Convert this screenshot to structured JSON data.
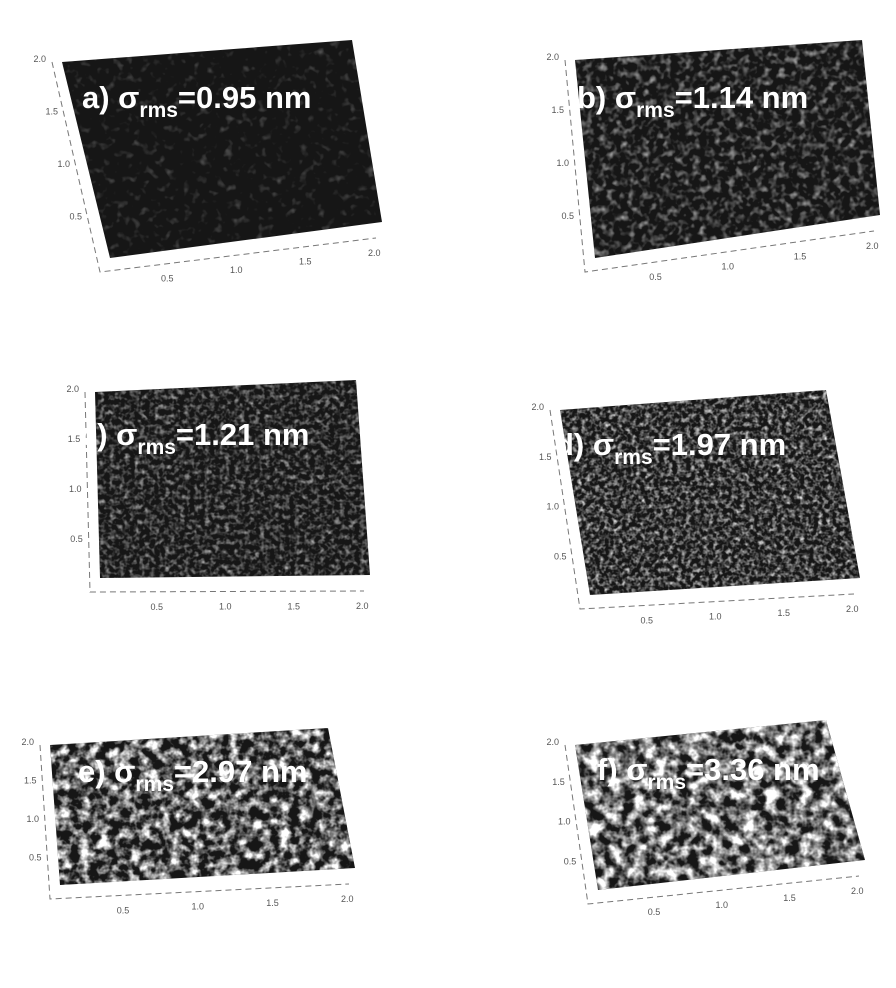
{
  "panels": [
    {
      "prefix": "a) σ",
      "sub": "rms",
      "suffix": "=0.95 nm"
    },
    {
      "prefix": "b) σ",
      "sub": "rms",
      "suffix": "=1.14 nm"
    },
    {
      "prefix": "c) σ",
      "sub": "rms",
      "suffix": "=1.21 nm"
    },
    {
      "prefix": "d) σ",
      "sub": "rms",
      "suffix": "=1.97 nm"
    },
    {
      "prefix": "e) σ",
      "sub": "rms",
      "suffix": "=2.97 nm"
    },
    {
      "prefix": "f) σ",
      "sub": "rms",
      "suffix": "=3.36 nm"
    }
  ],
  "axis_ticks": [
    "0.5",
    "1.0",
    "1.5",
    "2.0"
  ]
}
